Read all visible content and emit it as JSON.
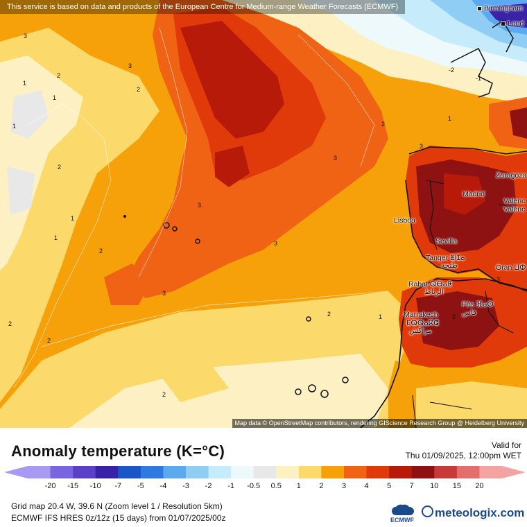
{
  "top_notice": "This service is based on data and products of the European Centre for Medium-range Weather Forecasts (ECMWF)",
  "attribution": "Map data © OpenStreetMap contributors, rendering GIScience Research Group @ Heidelberg University",
  "cities": {
    "birmingham": "Birmingham",
    "london": "Lond",
    "zaragoza": "Zaragoza",
    "madrid": "Madrid",
    "valencia1": "Valenc",
    "valencia2": "Valènc",
    "lisboa": "Lisboa",
    "sevilla": "Sevilla",
    "tanger": "Tanger ⵟⵏⵊⴰ",
    "tanger_ar": "طنجة",
    "oran": "Oran ⵡⵀ",
    "rabat": "Rabat ⵕⴱⴰⵟ",
    "rabat_ar": "الرباط",
    "fes": "Fès ⴼⴰⵙ",
    "fes_ar": "فاس",
    "marrakech": "Marrakech",
    "marrakech_tf": "ⵎⵕⵕⴰⴽⵛ",
    "marrakech_ar": "مراكش"
  },
  "contour_labels": [
    "3",
    "3",
    "2",
    "2",
    "1",
    "1",
    "1",
    "2",
    "3",
    "3",
    "2",
    "2",
    "3",
    "3",
    "2",
    "1",
    "1",
    "2",
    "2",
    "2",
    "3",
    "3",
    "-1",
    "-2",
    "1",
    "1",
    "2"
  ],
  "legend": {
    "title": "Anomaly temperature (K=°C)",
    "valid_for": "Valid for",
    "valid_time": "Thu 01/09/2025, 12:00pm WET",
    "ticks": [
      "-20",
      "-15",
      "-10",
      "-7",
      "-5",
      "-4",
      "-3",
      "-2",
      "-1",
      "-0.5",
      "0.5",
      "1",
      "2",
      "3",
      "4",
      "5",
      "7",
      "10",
      "15",
      "20"
    ],
    "colors": [
      "#a89af2",
      "#7a65e0",
      "#5a40c8",
      "#3a22a8",
      "#1c55c8",
      "#2f7ae0",
      "#5ca9f0",
      "#8fcdf5",
      "#c6ebfa",
      "#eef9fc",
      "#e8e8e8",
      "#fdf1c4",
      "#fbd96a",
      "#f6a10a",
      "#f06214",
      "#e03a0a",
      "#b81a0a",
      "#8e1212",
      "#c83a3a",
      "#e36e6e",
      "#f4a3a3"
    ]
  },
  "grid_info": "Grid map 20.4 W, 39.6 N (Zoom level 1 / Resolution 5km)",
  "model_info": "ECMWF IFS HRES 0z/12z (15 days) from 01/07/2025/00z",
  "branding": {
    "ecmwf": "ECMWF",
    "meteologix": "meteologix.com"
  }
}
